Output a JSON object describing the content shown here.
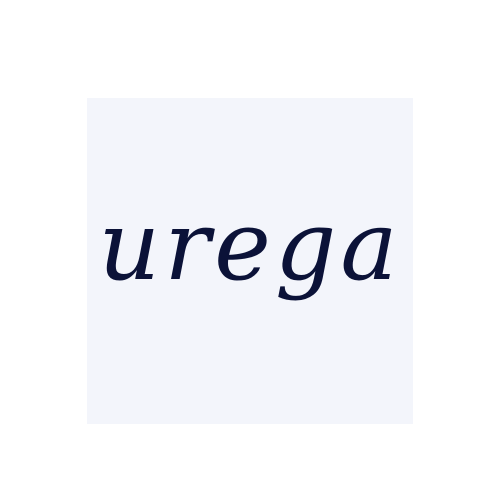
{
  "logo": {
    "wordmark": "urega",
    "text_color": "#0b1238",
    "tile_color": "#f3f5fb",
    "page_background": "#ffffff"
  }
}
